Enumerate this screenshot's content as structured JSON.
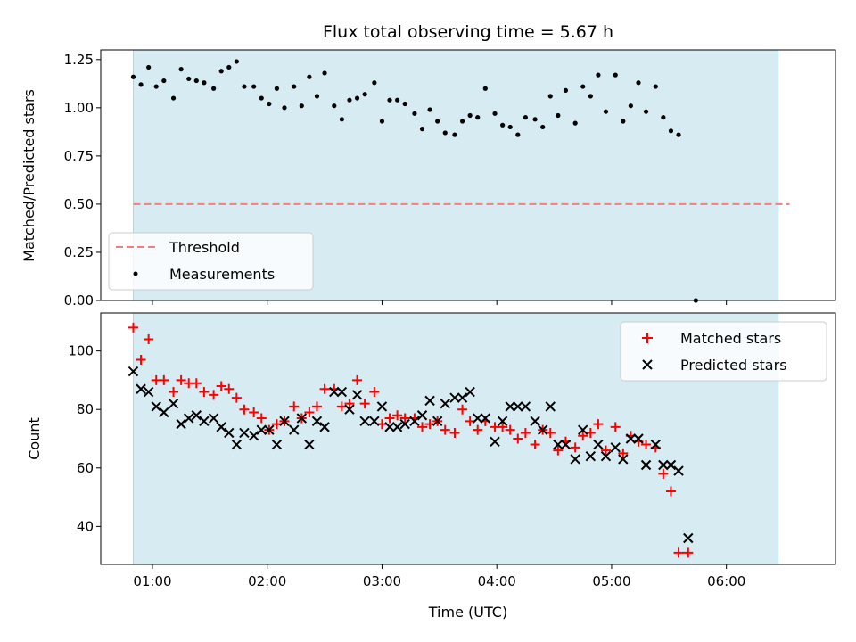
{
  "chart_data": [
    {
      "type": "scatter",
      "title": "Flux total observing time = 5.67 h",
      "xlabel": "",
      "ylabel": "Matched/Predicted stars",
      "xlim": [
        "00:33",
        "06:57"
      ],
      "ylim": [
        0,
        1.3
      ],
      "yticks": [
        0.0,
        0.25,
        0.5,
        0.75,
        1.0,
        1.25
      ],
      "ytick_labels": [
        "0.00",
        "0.25",
        "0.50",
        "0.75",
        "1.00",
        "1.25"
      ],
      "xticks": [
        "01:00",
        "02:00",
        "03:00",
        "04:00",
        "05:00",
        "06:00"
      ],
      "shaded_span": [
        "00:50",
        "06:27"
      ],
      "legend_position": "lower-left",
      "threshold": {
        "name": "Threshold",
        "value": 0.5,
        "x_range": [
          "00:50",
          "06:33"
        ],
        "color": "#f08080",
        "style": "dashed"
      },
      "series": [
        {
          "name": "Measurements",
          "color": "#000000",
          "marker": "dot",
          "points": [
            [
              "00:50",
              1.16
            ],
            [
              "00:54",
              1.12
            ],
            [
              "00:58",
              1.21
            ],
            [
              "01:02",
              1.11
            ],
            [
              "01:06",
              1.14
            ],
            [
              "01:11",
              1.05
            ],
            [
              "01:15",
              1.2
            ],
            [
              "01:19",
              1.15
            ],
            [
              "01:23",
              1.14
            ],
            [
              "01:27",
              1.13
            ],
            [
              "01:32",
              1.1
            ],
            [
              "01:36",
              1.19
            ],
            [
              "01:40",
              1.21
            ],
            [
              "01:44",
              1.24
            ],
            [
              "01:48",
              1.11
            ],
            [
              "01:53",
              1.11
            ],
            [
              "01:57",
              1.05
            ],
            [
              "02:01",
              1.02
            ],
            [
              "02:05",
              1.1
            ],
            [
              "02:09",
              1.0
            ],
            [
              "02:14",
              1.11
            ],
            [
              "02:18",
              1.01
            ],
            [
              "02:22",
              1.16
            ],
            [
              "02:26",
              1.06
            ],
            [
              "02:30",
              1.18
            ],
            [
              "02:35",
              1.01
            ],
            [
              "02:39",
              0.94
            ],
            [
              "02:43",
              1.04
            ],
            [
              "02:47",
              1.05
            ],
            [
              "02:51",
              1.07
            ],
            [
              "02:56",
              1.13
            ],
            [
              "03:00",
              0.93
            ],
            [
              "03:04",
              1.04
            ],
            [
              "03:08",
              1.04
            ],
            [
              "03:12",
              1.02
            ],
            [
              "03:17",
              0.97
            ],
            [
              "03:21",
              0.89
            ],
            [
              "03:25",
              0.99
            ],
            [
              "03:29",
              0.93
            ],
            [
              "03:33",
              0.87
            ],
            [
              "03:38",
              0.86
            ],
            [
              "03:42",
              0.93
            ],
            [
              "03:46",
              0.96
            ],
            [
              "03:50",
              0.95
            ],
            [
              "03:54",
              1.1
            ],
            [
              "03:59",
              0.97
            ],
            [
              "04:03",
              0.91
            ],
            [
              "04:07",
              0.9
            ],
            [
              "04:11",
              0.86
            ],
            [
              "04:15",
              0.95
            ],
            [
              "04:20",
              0.94
            ],
            [
              "04:24",
              0.9
            ],
            [
              "04:28",
              1.06
            ],
            [
              "04:32",
              0.96
            ],
            [
              "04:36",
              1.09
            ],
            [
              "04:41",
              0.92
            ],
            [
              "04:45",
              1.11
            ],
            [
              "04:49",
              1.06
            ],
            [
              "04:53",
              1.17
            ],
            [
              "04:57",
              0.98
            ],
            [
              "05:02",
              1.17
            ],
            [
              "05:06",
              0.93
            ],
            [
              "05:10",
              1.01
            ],
            [
              "05:14",
              1.13
            ],
            [
              "05:18",
              0.98
            ],
            [
              "05:23",
              1.11
            ],
            [
              "05:27",
              0.95
            ],
            [
              "05:31",
              0.88
            ],
            [
              "05:35",
              0.86
            ],
            [
              "05:44",
              0.0
            ]
          ]
        }
      ]
    },
    {
      "type": "scatter",
      "title": "",
      "xlabel": "Time (UTC)",
      "ylabel": "Count",
      "xlim": [
        "00:33",
        "06:57"
      ],
      "ylim": [
        27,
        113
      ],
      "yticks": [
        40,
        60,
        80,
        100
      ],
      "ytick_labels": [
        "40",
        "60",
        "80",
        "100"
      ],
      "xticks": [
        "01:00",
        "02:00",
        "03:00",
        "04:00",
        "05:00",
        "06:00"
      ],
      "xtick_labels": [
        "01:00",
        "02:00",
        "03:00",
        "04:00",
        "05:00",
        "06:00"
      ],
      "shaded_span": [
        "00:50",
        "06:27"
      ],
      "legend_position": "upper-right",
      "series": [
        {
          "name": "Matched stars",
          "color": "#ff0000",
          "marker": "plus",
          "points": [
            [
              "00:50",
              108
            ],
            [
              "00:54",
              97
            ],
            [
              "00:58",
              104
            ],
            [
              "01:02",
              90
            ],
            [
              "01:06",
              90
            ],
            [
              "01:11",
              86
            ],
            [
              "01:15",
              90
            ],
            [
              "01:19",
              89
            ],
            [
              "01:23",
              89
            ],
            [
              "01:27",
              86
            ],
            [
              "01:32",
              85
            ],
            [
              "01:36",
              88
            ],
            [
              "01:40",
              87
            ],
            [
              "01:44",
              84
            ],
            [
              "01:48",
              80
            ],
            [
              "01:53",
              79
            ],
            [
              "01:57",
              77
            ],
            [
              "02:01",
              73
            ],
            [
              "02:05",
              75
            ],
            [
              "02:09",
              76
            ],
            [
              "02:14",
              81
            ],
            [
              "02:18",
              77
            ],
            [
              "02:22",
              79
            ],
            [
              "02:26",
              81
            ],
            [
              "02:30",
              87
            ],
            [
              "02:35",
              87
            ],
            [
              "02:39",
              81
            ],
            [
              "02:43",
              82
            ],
            [
              "02:47",
              90
            ],
            [
              "02:51",
              82
            ],
            [
              "02:56",
              86
            ],
            [
              "03:00",
              75
            ],
            [
              "03:04",
              77
            ],
            [
              "03:08",
              78
            ],
            [
              "03:12",
              77
            ],
            [
              "03:17",
              77
            ],
            [
              "03:21",
              74
            ],
            [
              "03:25",
              75
            ],
            [
              "03:29",
              76
            ],
            [
              "03:33",
              73
            ],
            [
              "03:38",
              72
            ],
            [
              "03:42",
              80
            ],
            [
              "03:46",
              76
            ],
            [
              "03:50",
              73
            ],
            [
              "03:54",
              76
            ],
            [
              "03:59",
              74
            ],
            [
              "04:03",
              74
            ],
            [
              "04:07",
              73
            ],
            [
              "04:11",
              70
            ],
            [
              "04:15",
              72
            ],
            [
              "04:20",
              68
            ],
            [
              "04:24",
              73
            ],
            [
              "04:28",
              72
            ],
            [
              "04:32",
              66
            ],
            [
              "04:36",
              69
            ],
            [
              "04:41",
              67
            ],
            [
              "04:45",
              71
            ],
            [
              "04:49",
              72
            ],
            [
              "04:53",
              75
            ],
            [
              "04:57",
              66
            ],
            [
              "05:02",
              74
            ],
            [
              "05:06",
              65
            ],
            [
              "05:10",
              71
            ],
            [
              "05:14",
              69
            ],
            [
              "05:18",
              68
            ],
            [
              "05:23",
              67
            ],
            [
              "05:27",
              58
            ],
            [
              "05:31",
              52
            ],
            [
              "05:35",
              31
            ],
            [
              "05:40",
              31
            ]
          ]
        },
        {
          "name": "Predicted stars",
          "color": "#000000",
          "marker": "x",
          "points": [
            [
              "00:50",
              93
            ],
            [
              "00:54",
              87
            ],
            [
              "00:58",
              86
            ],
            [
              "01:02",
              81
            ],
            [
              "01:06",
              79
            ],
            [
              "01:11",
              82
            ],
            [
              "01:15",
              75
            ],
            [
              "01:19",
              77
            ],
            [
              "01:23",
              78
            ],
            [
              "01:27",
              76
            ],
            [
              "01:32",
              77
            ],
            [
              "01:36",
              74
            ],
            [
              "01:40",
              72
            ],
            [
              "01:44",
              68
            ],
            [
              "01:48",
              72
            ],
            [
              "01:53",
              71
            ],
            [
              "01:57",
              73
            ],
            [
              "02:01",
              73
            ],
            [
              "02:05",
              68
            ],
            [
              "02:09",
              76
            ],
            [
              "02:14",
              73
            ],
            [
              "02:18",
              77
            ],
            [
              "02:22",
              68
            ],
            [
              "02:26",
              76
            ],
            [
              "02:30",
              74
            ],
            [
              "02:35",
              86
            ],
            [
              "02:39",
              86
            ],
            [
              "02:43",
              80
            ],
            [
              "02:47",
              85
            ],
            [
              "02:51",
              76
            ],
            [
              "02:56",
              76
            ],
            [
              "03:00",
              81
            ],
            [
              "03:04",
              74
            ],
            [
              "03:08",
              74
            ],
            [
              "03:12",
              75
            ],
            [
              "03:17",
              76
            ],
            [
              "03:21",
              78
            ],
            [
              "03:25",
              83
            ],
            [
              "03:29",
              76
            ],
            [
              "03:33",
              82
            ],
            [
              "03:38",
              84
            ],
            [
              "03:42",
              84
            ],
            [
              "03:46",
              86
            ],
            [
              "03:50",
              77
            ],
            [
              "03:54",
              77
            ],
            [
              "03:59",
              69
            ],
            [
              "04:03",
              76
            ],
            [
              "04:07",
              81
            ],
            [
              "04:11",
              81
            ],
            [
              "04:15",
              81
            ],
            [
              "04:20",
              76
            ],
            [
              "04:24",
              73
            ],
            [
              "04:28",
              81
            ],
            [
              "04:32",
              68
            ],
            [
              "04:36",
              68
            ],
            [
              "04:41",
              63
            ],
            [
              "04:45",
              73
            ],
            [
              "04:49",
              64
            ],
            [
              "04:53",
              68
            ],
            [
              "04:57",
              64
            ],
            [
              "05:02",
              67
            ],
            [
              "05:06",
              63
            ],
            [
              "05:10",
              70
            ],
            [
              "05:14",
              70
            ],
            [
              "05:18",
              61
            ],
            [
              "05:23",
              68
            ],
            [
              "05:27",
              61
            ],
            [
              "05:31",
              61
            ],
            [
              "05:35",
              59
            ],
            [
              "05:40",
              36
            ]
          ]
        }
      ]
    }
  ]
}
